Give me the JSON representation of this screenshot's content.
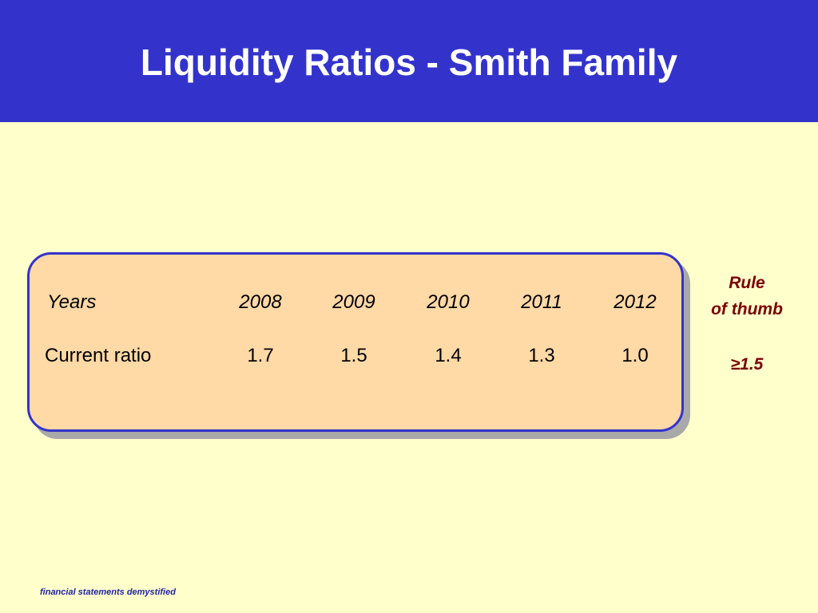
{
  "slide": {
    "title": "Liquidity Ratios - Smith Family"
  },
  "table": {
    "header_label": "Years",
    "years": [
      "2008",
      "2009",
      "2010",
      "2011",
      "2012"
    ],
    "row_label": "Current ratio",
    "values": [
      "1.7",
      "1.5",
      "1.4",
      "1.3",
      "1.0"
    ]
  },
  "rule_of_thumb": {
    "line1": "Rule",
    "line2": "of thumb",
    "value": "≥1.5"
  },
  "footer": {
    "text": "financial statements demystified"
  },
  "colors": {
    "header_bg": "#3333CC",
    "slide_bg": "#FFFFCC",
    "box_fill": "#FFD9A6",
    "box_border": "#3333CC",
    "rule_text": "#7A0000"
  }
}
